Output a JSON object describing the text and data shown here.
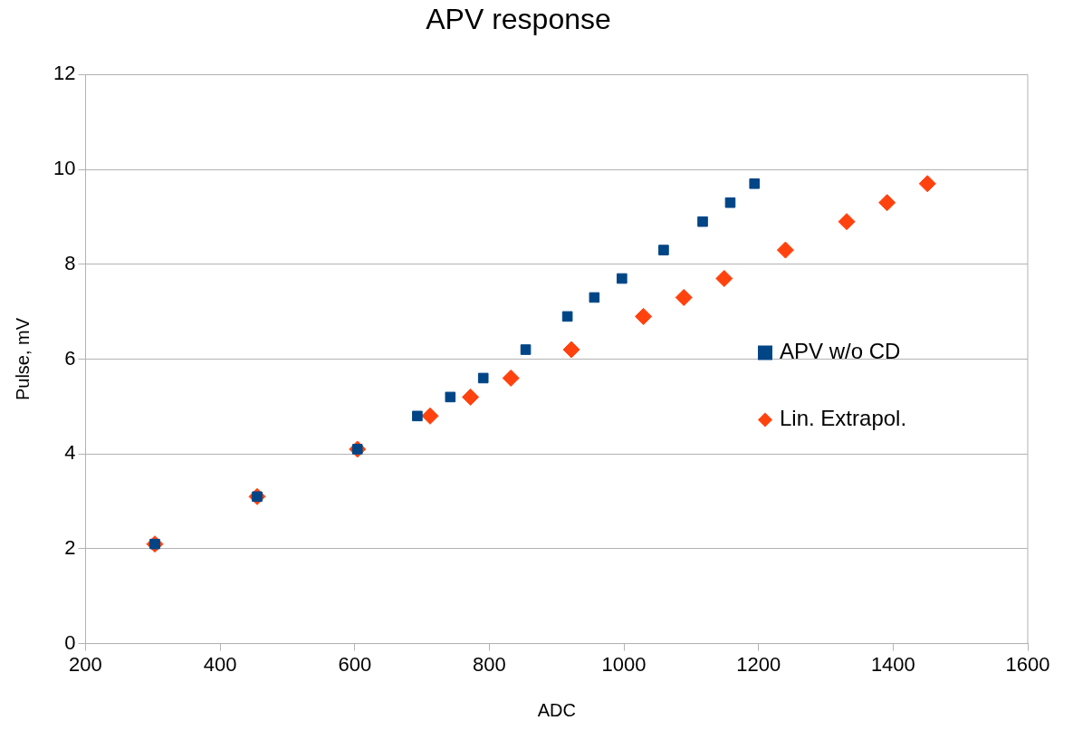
{
  "chart_data": {
    "type": "scatter",
    "title": "APV response",
    "xlabel": "ADC",
    "ylabel": "Pulse, mV",
    "xlim": [
      200,
      1600
    ],
    "xticks": [
      200,
      400,
      600,
      800,
      1000,
      1200,
      1400,
      1600
    ],
    "ylim": [
      0,
      12
    ],
    "yticks": [
      0,
      2,
      4,
      6,
      8,
      10,
      12
    ],
    "grid": "y",
    "legend": "right",
    "series": [
      {
        "name": "APV w/o CD",
        "color": "#004586",
        "marker": "square",
        "x": [
          303,
          455,
          604,
          693,
          742,
          791,
          854,
          916,
          956,
          997,
          1059,
          1117,
          1158,
          1194
        ],
        "values": [
          2.1,
          3.1,
          4.1,
          4.8,
          5.2,
          5.6,
          6.2,
          6.9,
          7.3,
          7.7,
          8.3,
          8.9,
          9.3,
          9.7
        ]
      },
      {
        "name": "Lin. Extrapol.",
        "color": "#ff420e",
        "marker": "diamond",
        "x": [
          303,
          455,
          604,
          712,
          772,
          832,
          922,
          1029,
          1089,
          1149,
          1240,
          1331,
          1391,
          1451
        ],
        "values": [
          2.1,
          3.1,
          4.1,
          4.8,
          5.2,
          5.6,
          6.2,
          6.9,
          7.3,
          7.7,
          8.3,
          8.9,
          9.3,
          9.7
        ]
      }
    ]
  }
}
